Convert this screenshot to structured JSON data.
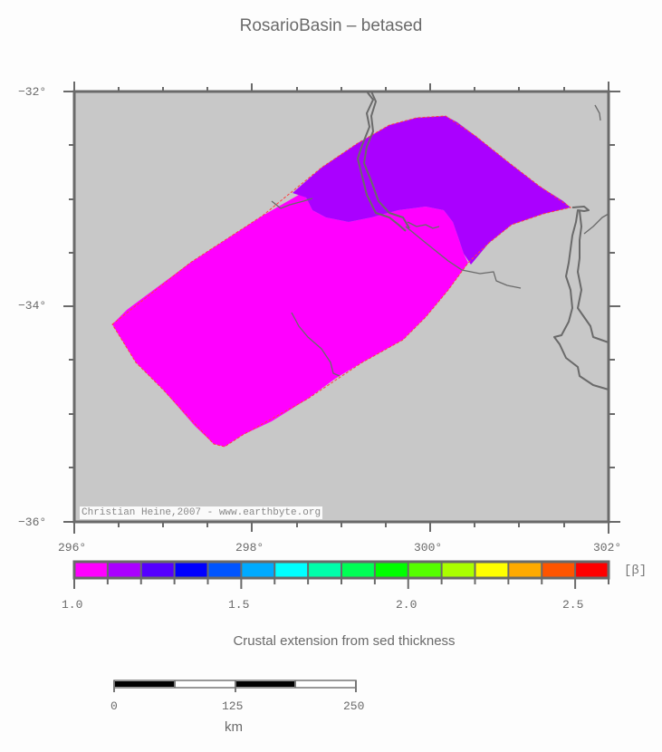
{
  "title": "RosarioBasin – betased",
  "map": {
    "background_color": "#c8c8c8",
    "frame_color": "#6a6a6a",
    "x_ticks": [
      {
        "label": "296°",
        "value": 296
      },
      {
        "label": "298°",
        "value": 298
      },
      {
        "label": "300°",
        "value": 300
      },
      {
        "label": "302°",
        "value": 302
      }
    ],
    "y_ticks": [
      {
        "label": "−32°",
        "value": -32
      },
      {
        "label": "−34°",
        "value": -34
      },
      {
        "label": "−36°",
        "value": -36
      }
    ],
    "x_range": [
      296,
      302
    ],
    "y_range": [
      -36,
      -32
    ],
    "credit": "Christian Heine,2007 - www.earthbyte.org",
    "regions": [
      {
        "name": "beta-1.0-1.05",
        "color": "#ff00ff"
      },
      {
        "name": "beta-1.05-1.1",
        "color": "#aa00ff"
      }
    ]
  },
  "colorbar": {
    "unit": "[β]",
    "caption": "Crustal extension from sed thickness",
    "colors": [
      "#ff00ff",
      "#aa00ff",
      "#5500ff",
      "#0000ff",
      "#0055ff",
      "#00aaff",
      "#00ffff",
      "#00ffaa",
      "#00ff55",
      "#00ff00",
      "#55ff00",
      "#aaff00",
      "#ffff00",
      "#ffaa00",
      "#ff5500",
      "#ff0000"
    ],
    "labels": [
      {
        "label": "1.0",
        "value": 1.0
      },
      {
        "label": "1.5",
        "value": 1.5
      },
      {
        "label": "2.0",
        "value": 2.0
      },
      {
        "label": "2.5",
        "value": 2.5
      }
    ],
    "range": [
      1.0,
      2.6
    ]
  },
  "scalebar": {
    "labels": [
      "0",
      "125",
      "250"
    ],
    "unit": "km"
  }
}
